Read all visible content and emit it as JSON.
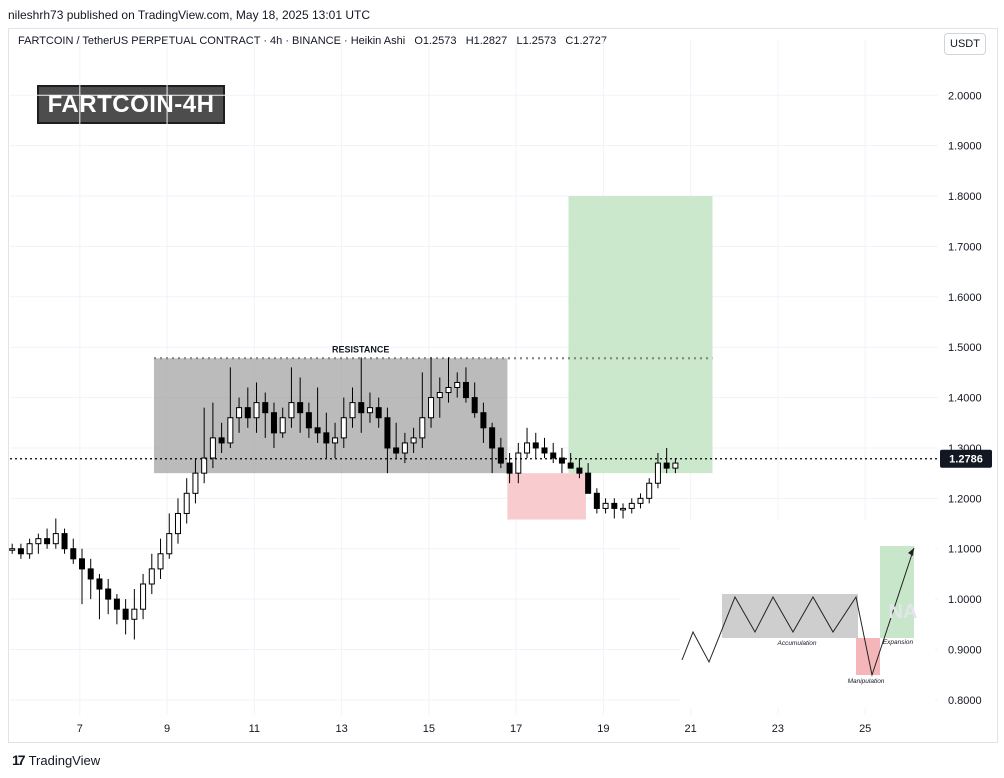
{
  "header": {
    "publisher_line": "nileshrh73 published on TradingView.com, May 18, 2025 13:01 UTC"
  },
  "symbol": {
    "line": "FARTCOIN / TetherUS PERPETUAL CONTRACT · 4h · BINANCE · Heikin Ashi",
    "open": "O1.2573",
    "high": "H1.2827",
    "low": "L1.2573",
    "close": "C1.2727"
  },
  "currency_button": "USDT",
  "badge": "FARTCOIN-4H",
  "brand": {
    "label": "TradingView",
    "icon": "tradingview-logo-icon"
  },
  "colors": {
    "candle": "#000000",
    "accumulation_zone": "#9e9e9e",
    "stop_zone": "#f7c7c9",
    "target_zone": "#c8e6c9",
    "resistance": "#888888",
    "price_line": "#000000",
    "price_label_bg": "#131722"
  },
  "chart_data": {
    "type": "candlestick",
    "style": "Heikin Ashi",
    "timeframe": "4h",
    "y_axis": {
      "ticks": [
        "2.0000",
        "1.9000",
        "1.8000",
        "1.7000",
        "1.6000",
        "1.5000",
        "1.4000",
        "1.3000",
        "1.2000",
        "1.1000",
        "1.0000",
        "0.9000",
        "0.8000"
      ],
      "range": [
        0.77,
        2.07
      ],
      "position": "right"
    },
    "x_axis": {
      "ticks": [
        "7",
        "9",
        "11",
        "13",
        "15",
        "17",
        "19",
        "21",
        "23",
        "25"
      ],
      "day_range": [
        5.4,
        26.6
      ]
    },
    "grid": true,
    "last_price": {
      "value": 1.2786,
      "label": "1.2786"
    },
    "resistance": {
      "label": "RESISTANCE",
      "value": 1.478,
      "from_day": 8.7,
      "to_day": 21.5
    },
    "accumulation_zone": {
      "from_day": 8.7,
      "to_day": 16.8,
      "low": 1.25,
      "high": 1.478
    },
    "stop_zone": {
      "from_day": 16.8,
      "to_day": 18.6,
      "low": 1.158,
      "high": 1.25
    },
    "target_zone": {
      "from_day": 18.2,
      "to_day": 21.5,
      "low": 1.25,
      "high": 1.8
    },
    "candles": [
      [
        5.45,
        1.1,
        1.11,
        1.09,
        1.1
      ],
      [
        5.65,
        1.1,
        1.11,
        1.08,
        1.09
      ],
      [
        5.85,
        1.09,
        1.12,
        1.08,
        1.11
      ],
      [
        6.05,
        1.11,
        1.13,
        1.09,
        1.12
      ],
      [
        6.25,
        1.12,
        1.14,
        1.1,
        1.11
      ],
      [
        6.45,
        1.11,
        1.16,
        1.1,
        1.13
      ],
      [
        6.65,
        1.13,
        1.14,
        1.09,
        1.1
      ],
      [
        6.85,
        1.1,
        1.12,
        1.07,
        1.08
      ],
      [
        7.05,
        1.08,
        1.1,
        0.99,
        1.06
      ],
      [
        7.25,
        1.06,
        1.08,
        1.0,
        1.04
      ],
      [
        7.45,
        1.04,
        1.05,
        0.96,
        1.02
      ],
      [
        7.65,
        1.02,
        1.04,
        0.97,
        1.0
      ],
      [
        7.85,
        1.0,
        1.01,
        0.95,
        0.98
      ],
      [
        8.05,
        0.98,
        1.0,
        0.93,
        0.96
      ],
      [
        8.25,
        0.96,
        1.02,
        0.92,
        0.98
      ],
      [
        8.45,
        0.98,
        1.05,
        0.96,
        1.03
      ],
      [
        8.65,
        1.03,
        1.09,
        1.01,
        1.06
      ],
      [
        8.85,
        1.06,
        1.12,
        1.04,
        1.09
      ],
      [
        9.05,
        1.09,
        1.17,
        1.08,
        1.13
      ],
      [
        9.25,
        1.13,
        1.2,
        1.11,
        1.17
      ],
      [
        9.45,
        1.17,
        1.24,
        1.15,
        1.21
      ],
      [
        9.65,
        1.21,
        1.28,
        1.19,
        1.25
      ],
      [
        9.85,
        1.25,
        1.38,
        1.23,
        1.28
      ],
      [
        10.05,
        1.28,
        1.39,
        1.26,
        1.32
      ],
      [
        10.25,
        1.32,
        1.35,
        1.29,
        1.31
      ],
      [
        10.45,
        1.31,
        1.46,
        1.3,
        1.36
      ],
      [
        10.65,
        1.36,
        1.4,
        1.33,
        1.38
      ],
      [
        10.85,
        1.38,
        1.42,
        1.34,
        1.36
      ],
      [
        11.05,
        1.36,
        1.43,
        1.33,
        1.39
      ],
      [
        11.25,
        1.39,
        1.41,
        1.32,
        1.37
      ],
      [
        11.45,
        1.37,
        1.39,
        1.3,
        1.33
      ],
      [
        11.65,
        1.33,
        1.38,
        1.32,
        1.36
      ],
      [
        11.85,
        1.36,
        1.46,
        1.34,
        1.39
      ],
      [
        12.05,
        1.39,
        1.44,
        1.33,
        1.37
      ],
      [
        12.25,
        1.37,
        1.39,
        1.32,
        1.34
      ],
      [
        12.45,
        1.34,
        1.42,
        1.31,
        1.33
      ],
      [
        12.65,
        1.33,
        1.37,
        1.28,
        1.31
      ],
      [
        12.85,
        1.31,
        1.35,
        1.28,
        1.32
      ],
      [
        13.05,
        1.32,
        1.4,
        1.3,
        1.36
      ],
      [
        13.25,
        1.36,
        1.42,
        1.34,
        1.39
      ],
      [
        13.45,
        1.39,
        1.48,
        1.33,
        1.37
      ],
      [
        13.65,
        1.37,
        1.41,
        1.35,
        1.38
      ],
      [
        13.85,
        1.38,
        1.4,
        1.34,
        1.36
      ],
      [
        14.05,
        1.36,
        1.38,
        1.25,
        1.3
      ],
      [
        14.25,
        1.3,
        1.35,
        1.28,
        1.29
      ],
      [
        14.45,
        1.29,
        1.33,
        1.27,
        1.31
      ],
      [
        14.65,
        1.31,
        1.34,
        1.29,
        1.32
      ],
      [
        14.85,
        1.32,
        1.45,
        1.3,
        1.36
      ],
      [
        15.05,
        1.36,
        1.48,
        1.34,
        1.4
      ],
      [
        15.25,
        1.4,
        1.44,
        1.36,
        1.41
      ],
      [
        15.45,
        1.41,
        1.48,
        1.39,
        1.42
      ],
      [
        15.65,
        1.42,
        1.45,
        1.4,
        1.43
      ],
      [
        15.85,
        1.43,
        1.46,
        1.39,
        1.4
      ],
      [
        16.05,
        1.4,
        1.43,
        1.36,
        1.37
      ],
      [
        16.25,
        1.37,
        1.39,
        1.31,
        1.34
      ],
      [
        16.45,
        1.34,
        1.35,
        1.25,
        1.3
      ],
      [
        16.65,
        1.3,
        1.32,
        1.26,
        1.27
      ],
      [
        16.85,
        1.27,
        1.29,
        1.23,
        1.25
      ],
      [
        17.05,
        1.25,
        1.31,
        1.23,
        1.29
      ],
      [
        17.25,
        1.29,
        1.34,
        1.28,
        1.31
      ],
      [
        17.45,
        1.31,
        1.33,
        1.28,
        1.3
      ],
      [
        17.65,
        1.3,
        1.32,
        1.28,
        1.29
      ],
      [
        17.85,
        1.29,
        1.31,
        1.27,
        1.28
      ],
      [
        18.05,
        1.28,
        1.3,
        1.25,
        1.27
      ],
      [
        18.25,
        1.27,
        1.29,
        1.26,
        1.26
      ],
      [
        18.45,
        1.26,
        1.28,
        1.24,
        1.25
      ],
      [
        18.65,
        1.25,
        1.27,
        1.22,
        1.21
      ],
      [
        18.85,
        1.21,
        1.22,
        1.17,
        1.18
      ],
      [
        19.05,
        1.18,
        1.2,
        1.17,
        1.19
      ],
      [
        19.25,
        1.19,
        1.2,
        1.16,
        1.18
      ],
      [
        19.45,
        1.18,
        1.19,
        1.16,
        1.18
      ],
      [
        19.65,
        1.18,
        1.2,
        1.17,
        1.19
      ],
      [
        19.85,
        1.19,
        1.21,
        1.18,
        1.2
      ],
      [
        20.05,
        1.2,
        1.24,
        1.19,
        1.23
      ],
      [
        20.25,
        1.23,
        1.29,
        1.22,
        1.27
      ],
      [
        20.45,
        1.27,
        1.3,
        1.25,
        1.26
      ],
      [
        20.65,
        1.26,
        1.28,
        1.25,
        1.27
      ]
    ],
    "inset": {
      "labels": {
        "accumulation": "Accumulation",
        "manipulation": "Manipulation",
        "expansion": "Expansion"
      },
      "watermark": "NA"
    }
  }
}
